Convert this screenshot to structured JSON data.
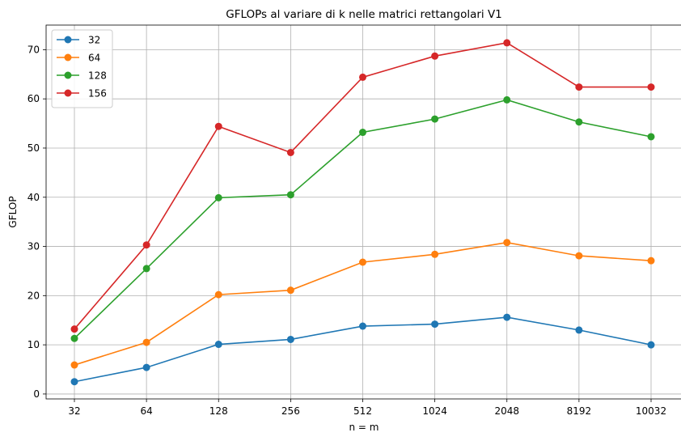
{
  "chart_data": {
    "type": "line",
    "title": "GFLOPs al variare di k nelle matrici rettangolari V1",
    "xlabel": "n = m",
    "ylabel": "GFLOP",
    "categories": [
      "32",
      "64",
      "128",
      "256",
      "512",
      "1024",
      "2048",
      "8192",
      "10032"
    ],
    "ylim": [
      -1,
      75
    ],
    "yticks": [
      0,
      10,
      20,
      30,
      40,
      50,
      60,
      70
    ],
    "grid": true,
    "legend_position": "top-left",
    "series": [
      {
        "name": "32",
        "color": "#1f77b4",
        "values": [
          2.5,
          5.4,
          10.1,
          11.1,
          13.8,
          14.2,
          15.6,
          13.0,
          10.0
        ]
      },
      {
        "name": "64",
        "color": "#ff7f0e",
        "values": [
          5.9,
          10.5,
          20.2,
          21.1,
          26.8,
          28.4,
          30.8,
          28.1,
          27.1
        ]
      },
      {
        "name": "128",
        "color": "#2ca02c",
        "values": [
          11.3,
          25.5,
          39.9,
          40.5,
          53.2,
          55.9,
          59.8,
          55.3,
          52.3
        ]
      },
      {
        "name": "156",
        "color": "#d62728",
        "values": [
          13.2,
          30.3,
          54.4,
          49.1,
          64.4,
          68.7,
          71.4,
          62.4,
          62.4
        ]
      }
    ]
  }
}
